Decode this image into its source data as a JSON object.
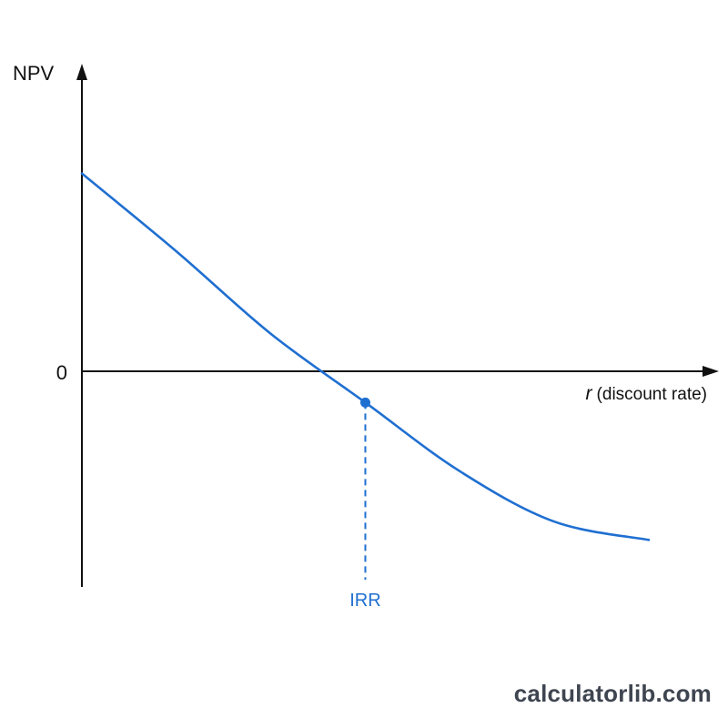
{
  "chart_data": {
    "type": "line",
    "title": "",
    "xlabel": {
      "var": "r",
      "text": "(discount rate)"
    },
    "ylabel": "NPV",
    "y_ticks": [
      "0"
    ],
    "x_ticks": [],
    "grid": false,
    "legend": "none",
    "series": [
      {
        "x": [
          0.0,
          0.5,
          1.0,
          1.5,
          2.0,
          2.5,
          3.0
        ],
        "y": [
          1.0,
          0.66,
          0.3,
          0.0,
          -0.3,
          -0.52,
          -0.6
        ]
      }
    ],
    "x_range": [
      0,
      3.4
    ],
    "y_range": [
      -1.0,
      1.4
    ],
    "annotations": [
      {
        "label": "IRR",
        "x": 1.5,
        "y": 0
      }
    ],
    "colors": {
      "curve": "#1f6fd1",
      "irr": "#1f6fd1",
      "axis": "#111111"
    }
  },
  "watermark": "calculatorlib.com"
}
